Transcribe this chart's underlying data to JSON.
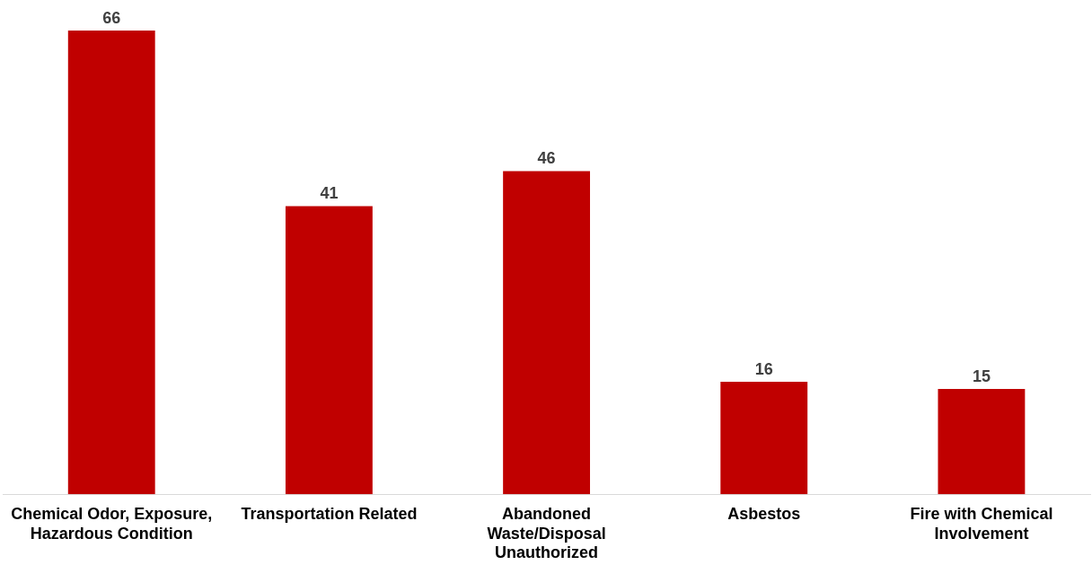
{
  "chart_data": {
    "type": "bar",
    "categories": [
      "Chemical Odor, Exposure, Hazardous Condition",
      "Transportation Related",
      "Abandoned Waste/Disposal Unauthorized",
      "Asbestos",
      "Fire with Chemical Involvement"
    ],
    "values": [
      66,
      41,
      46,
      16,
      15
    ],
    "color": "#c00000",
    "data_labels": true,
    "grid": false,
    "legend": false
  }
}
